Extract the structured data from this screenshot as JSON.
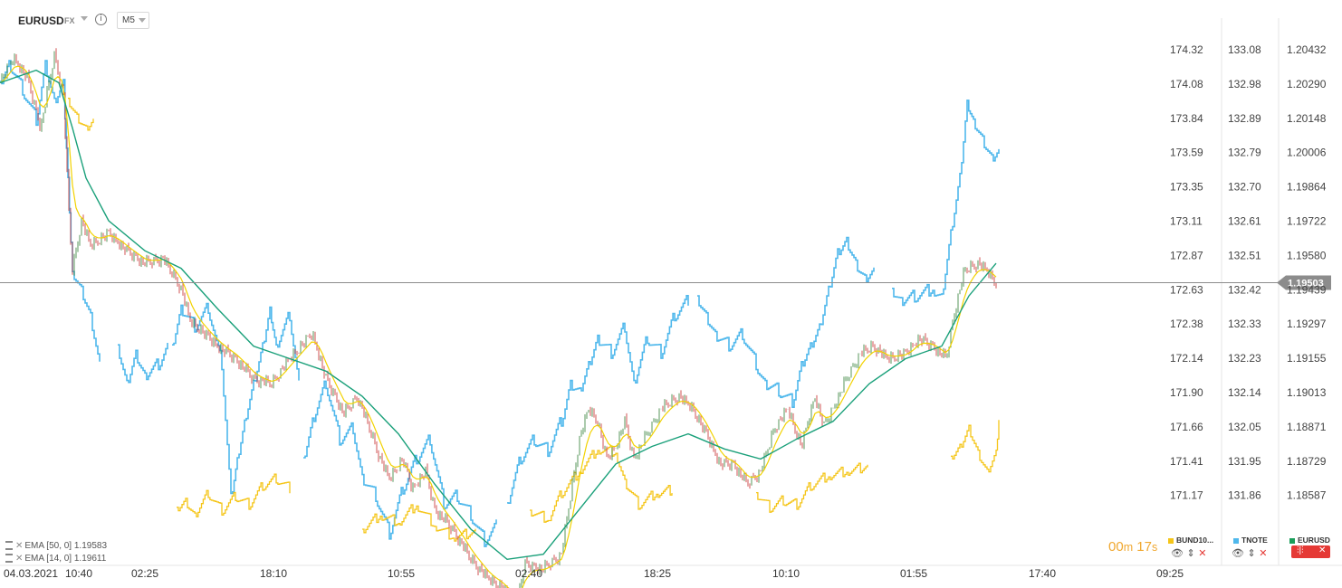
{
  "header": {
    "symbol": "EURUSD",
    "market": "FX",
    "info_glyph": "i",
    "timeframe": "M5"
  },
  "legend": [
    {
      "label": "EMA [50, 0] 1.19583"
    },
    {
      "label": "EMA [14, 0] 1.19611"
    }
  ],
  "timer": {
    "minutes": "00",
    "m": "m",
    "seconds": "17",
    "s": "s"
  },
  "series_switches": [
    {
      "name": "BUND10...",
      "color": "#f5c518"
    },
    {
      "name": "TNOTE",
      "color": "#4fb8ec"
    },
    {
      "name": "EURUSD",
      "color": "#1a9e5a"
    }
  ],
  "colors": {
    "bund": "#f5c518",
    "tnote": "#4fb8ec",
    "candle_up": "#2e7d32",
    "candle_down": "#c62828",
    "ema50": "#1aa07a",
    "ema14": "#f2d200",
    "current_line": "#8c8c8c",
    "remove": "#e53935"
  },
  "icons": [
    "eye-icon",
    "move-icon",
    "close-icon",
    "settings-icon"
  ],
  "chart_data": {
    "type": "line",
    "title": "EURUSD",
    "xlabels": [
      "04.03.2021",
      "10:40",
      "02:25",
      "18:10",
      "10:55",
      "02:40",
      "18:25",
      "10:10",
      "01:55",
      "17:40",
      "09:25"
    ],
    "axis_bund": {
      "ticks": [
        "174.32",
        "174.08",
        "173.84",
        "173.59",
        "173.35",
        "173.11",
        "172.87",
        "172.63",
        "172.38",
        "172.14",
        "171.90",
        "171.66",
        "171.41",
        "171.17"
      ],
      "range": [
        171.05,
        174.45
      ]
    },
    "axis_tnote": {
      "ticks": [
        "133.08",
        "132.98",
        "132.89",
        "132.79",
        "132.70",
        "132.61",
        "132.51",
        "132.42",
        "132.33",
        "132.23",
        "132.14",
        "132.05",
        "131.95",
        "131.86"
      ],
      "range": [
        131.81,
        133.13
      ]
    },
    "axis_eurusd": {
      "ticks": [
        "1.20432",
        "1.20290",
        "1.20148",
        "1.20006",
        "1.19864",
        "1.19722",
        "1.19580",
        "1.19439",
        "1.19297",
        "1.19155",
        "1.19013",
        "1.18871",
        "1.18729",
        "1.18587"
      ],
      "range": [
        1.1852,
        1.205
      ]
    },
    "current_price": "1.19503",
    "current_value": 1.19503,
    "eurusd_path": [
      [
        0,
        1.203
      ],
      [
        15,
        1.204
      ],
      [
        30,
        1.2032
      ],
      [
        45,
        1.2012
      ],
      [
        60,
        1.2041
      ],
      [
        70,
        1.2025
      ],
      [
        75,
        1.1985
      ],
      [
        80,
        1.1955
      ],
      [
        85,
        1.1965
      ],
      [
        90,
        1.1975
      ],
      [
        100,
        1.1965
      ],
      [
        120,
        1.197
      ],
      [
        140,
        1.1963
      ],
      [
        160,
        1.1958
      ],
      [
        180,
        1.196
      ],
      [
        200,
        1.1948
      ],
      [
        210,
        1.1935
      ],
      [
        220,
        1.1932
      ],
      [
        240,
        1.1925
      ],
      [
        260,
        1.192
      ],
      [
        280,
        1.1912
      ],
      [
        300,
        1.191
      ],
      [
        320,
        1.192
      ],
      [
        345,
        1.193
      ],
      [
        360,
        1.1912
      ],
      [
        370,
        1.1905
      ],
      [
        380,
        1.1898
      ],
      [
        395,
        1.1905
      ],
      [
        410,
        1.189
      ],
      [
        420,
        1.188
      ],
      [
        430,
        1.1872
      ],
      [
        445,
        1.188
      ],
      [
        455,
        1.1868
      ],
      [
        470,
        1.1875
      ],
      [
        480,
        1.186
      ],
      [
        500,
        1.1852
      ],
      [
        520,
        1.184
      ],
      [
        540,
        1.1832
      ],
      [
        555,
        1.1829
      ],
      [
        570,
        1.1822
      ],
      [
        580,
        1.1838
      ],
      [
        600,
        1.1836
      ],
      [
        620,
        1.1842
      ],
      [
        630,
        1.1865
      ],
      [
        640,
        1.1888
      ],
      [
        650,
        1.19
      ],
      [
        660,
        1.1895
      ],
      [
        670,
        1.188
      ],
      [
        680,
        1.1885
      ],
      [
        690,
        1.1895
      ],
      [
        700,
        1.188
      ],
      [
        715,
        1.189
      ],
      [
        730,
        1.19
      ],
      [
        750,
        1.1905
      ],
      [
        765,
        1.19
      ],
      [
        780,
        1.189
      ],
      [
        795,
        1.1878
      ],
      [
        810,
        1.1878
      ],
      [
        825,
        1.187
      ],
      [
        840,
        1.1875
      ],
      [
        855,
        1.1892
      ],
      [
        870,
        1.19
      ],
      [
        885,
        1.1885
      ],
      [
        900,
        1.1905
      ],
      [
        910,
        1.1893
      ],
      [
        920,
        1.19
      ],
      [
        935,
        1.1912
      ],
      [
        950,
        1.1922
      ],
      [
        965,
        1.1925
      ],
      [
        980,
        1.192
      ],
      [
        1000,
        1.1922
      ],
      [
        1015,
        1.1928
      ],
      [
        1030,
        1.1925
      ],
      [
        1045,
        1.192
      ],
      [
        1055,
        1.194
      ],
      [
        1065,
        1.1955
      ],
      [
        1080,
        1.1958
      ],
      [
        1090,
        1.1955
      ],
      [
        1100,
        1.195
      ]
    ],
    "ema50_path": [
      [
        0,
        1.203
      ],
      [
        40,
        1.2035
      ],
      [
        65,
        1.203
      ],
      [
        80,
        1.2012
      ],
      [
        95,
        1.1992
      ],
      [
        120,
        1.1975
      ],
      [
        160,
        1.1963
      ],
      [
        200,
        1.1956
      ],
      [
        240,
        1.194
      ],
      [
        280,
        1.1925
      ],
      [
        320,
        1.192
      ],
      [
        360,
        1.1915
      ],
      [
        400,
        1.1905
      ],
      [
        440,
        1.189
      ],
      [
        480,
        1.187
      ],
      [
        520,
        1.1852
      ],
      [
        560,
        1.184
      ],
      [
        600,
        1.1842
      ],
      [
        640,
        1.186
      ],
      [
        680,
        1.1878
      ],
      [
        720,
        1.1885
      ],
      [
        760,
        1.189
      ],
      [
        800,
        1.1884
      ],
      [
        840,
        1.188
      ],
      [
        880,
        1.1888
      ],
      [
        920,
        1.1895
      ],
      [
        960,
        1.191
      ],
      [
        1000,
        1.192
      ],
      [
        1040,
        1.1925
      ],
      [
        1070,
        1.1945
      ],
      [
        1100,
        1.1958
      ]
    ],
    "bund_segments": [
      [
        [
          75,
          174.0
        ],
        [
          85,
          173.88
        ],
        [
          95,
          173.8
        ],
        [
          103,
          173.86
        ]
      ],
      [
        [
          195,
          171.2
        ],
        [
          205,
          171.25
        ],
        [
          215,
          171.15
        ],
        [
          230,
          171.3
        ],
        [
          245,
          171.18
        ],
        [
          260,
          171.28
        ],
        [
          275,
          171.22
        ],
        [
          290,
          171.35
        ],
        [
          305,
          171.4
        ],
        [
          320,
          171.33
        ]
      ],
      [
        [
          400,
          171.05
        ],
        [
          420,
          171.15
        ],
        [
          440,
          171.1
        ],
        [
          460,
          171.22
        ],
        [
          480,
          171.08
        ],
        [
          500,
          171.0
        ],
        [
          525,
          171.03
        ]
      ],
      [
        [
          585,
          171.18
        ],
        [
          605,
          171.12
        ],
        [
          620,
          171.3
        ],
        [
          640,
          171.45
        ],
        [
          660,
          171.6
        ],
        [
          680,
          171.58
        ],
        [
          690,
          171.38
        ],
        [
          705,
          171.22
        ],
        [
          725,
          171.3
        ],
        [
          742,
          171.32
        ]
      ],
      [
        [
          835,
          171.3
        ],
        [
          850,
          171.2
        ],
        [
          865,
          171.25
        ],
        [
          880,
          171.22
        ],
        [
          895,
          171.35
        ],
        [
          915,
          171.42
        ],
        [
          935,
          171.45
        ],
        [
          958,
          171.48
        ]
      ],
      [
        [
          1050,
          171.55
        ],
        [
          1060,
          171.62
        ],
        [
          1070,
          171.75
        ],
        [
          1080,
          171.58
        ],
        [
          1090,
          171.45
        ],
        [
          1100,
          171.58
        ],
        [
          1103,
          171.82
        ]
      ]
    ],
    "tnote_segments": [
      [
        [
          0,
          133.0
        ],
        [
          10,
          133.05
        ],
        [
          25,
          132.98
        ],
        [
          40,
          132.9
        ],
        [
          50,
          133.05
        ],
        [
          60,
          132.95
        ],
        [
          70,
          133.0
        ],
        [
          75,
          132.75
        ],
        [
          80,
          132.5
        ],
        [
          90,
          132.45
        ],
        [
          100,
          132.38
        ],
        [
          110,
          132.25
        ]
      ],
      [
        [
          130,
          132.3
        ],
        [
          140,
          132.2
        ],
        [
          150,
          132.28
        ],
        [
          160,
          132.22
        ],
        [
          175,
          132.25
        ],
        [
          185,
          132.3
        ]
      ],
      [
        [
          190,
          132.3
        ],
        [
          200,
          132.4
        ],
        [
          215,
          132.35
        ],
        [
          230,
          132.4
        ],
        [
          245,
          132.25
        ],
        [
          255,
          131.9
        ],
        [
          262,
          132.0
        ],
        [
          270,
          132.1
        ],
        [
          280,
          132.2
        ],
        [
          290,
          132.3
        ],
        [
          298,
          132.4
        ],
        [
          305,
          132.3
        ],
        [
          320,
          132.38
        ],
        [
          330,
          132.2
        ]
      ],
      [
        [
          335,
          132.0
        ],
        [
          345,
          132.1
        ],
        [
          360,
          132.2
        ],
        [
          375,
          132.05
        ],
        [
          390,
          132.08
        ],
        [
          400,
          131.95
        ],
        [
          415,
          131.9
        ],
        [
          430,
          131.8
        ],
        [
          445,
          131.92
        ],
        [
          460,
          132.0
        ],
        [
          475,
          132.05
        ],
        [
          490,
          131.88
        ],
        [
          505,
          131.9
        ],
        [
          520,
          131.85
        ],
        [
          535,
          131.78
        ],
        [
          548,
          131.82
        ]
      ],
      [
        [
          560,
          131.88
        ],
        [
          575,
          132.0
        ],
        [
          590,
          132.05
        ],
        [
          605,
          132.02
        ],
        [
          620,
          132.1
        ],
        [
          630,
          132.2
        ],
        [
          640,
          132.18
        ],
        [
          650,
          132.25
        ],
        [
          660,
          132.32
        ],
        [
          675,
          132.28
        ],
        [
          690,
          132.35
        ],
        [
          700,
          132.2
        ],
        [
          715,
          132.32
        ],
        [
          730,
          132.28
        ],
        [
          745,
          132.38
        ],
        [
          760,
          132.42
        ]
      ],
      [
        [
          770,
          132.43
        ],
        [
          780,
          132.38
        ],
        [
          790,
          132.33
        ],
        [
          805,
          132.3
        ],
        [
          820,
          132.33
        ],
        [
          835,
          132.25
        ],
        [
          845,
          132.2
        ],
        [
          860,
          132.18
        ],
        [
          875,
          132.15
        ],
        [
          885,
          132.25
        ],
        [
          895,
          132.3
        ],
        [
          905,
          132.35
        ],
        [
          915,
          132.45
        ],
        [
          925,
          132.55
        ],
        [
          935,
          132.58
        ],
        [
          945,
          132.52
        ],
        [
          955,
          132.48
        ],
        [
          965,
          132.5
        ]
      ],
      [
        [
          985,
          132.45
        ],
        [
          995,
          132.42
        ],
        [
          1010,
          132.43
        ],
        [
          1030,
          132.45
        ],
        [
          1040,
          132.43
        ],
        [
          1050,
          132.6
        ],
        [
          1060,
          132.75
        ],
        [
          1068,
          132.95
        ],
        [
          1075,
          132.9
        ],
        [
          1085,
          132.85
        ],
        [
          1095,
          132.8
        ],
        [
          1103,
          132.82
        ]
      ]
    ]
  }
}
